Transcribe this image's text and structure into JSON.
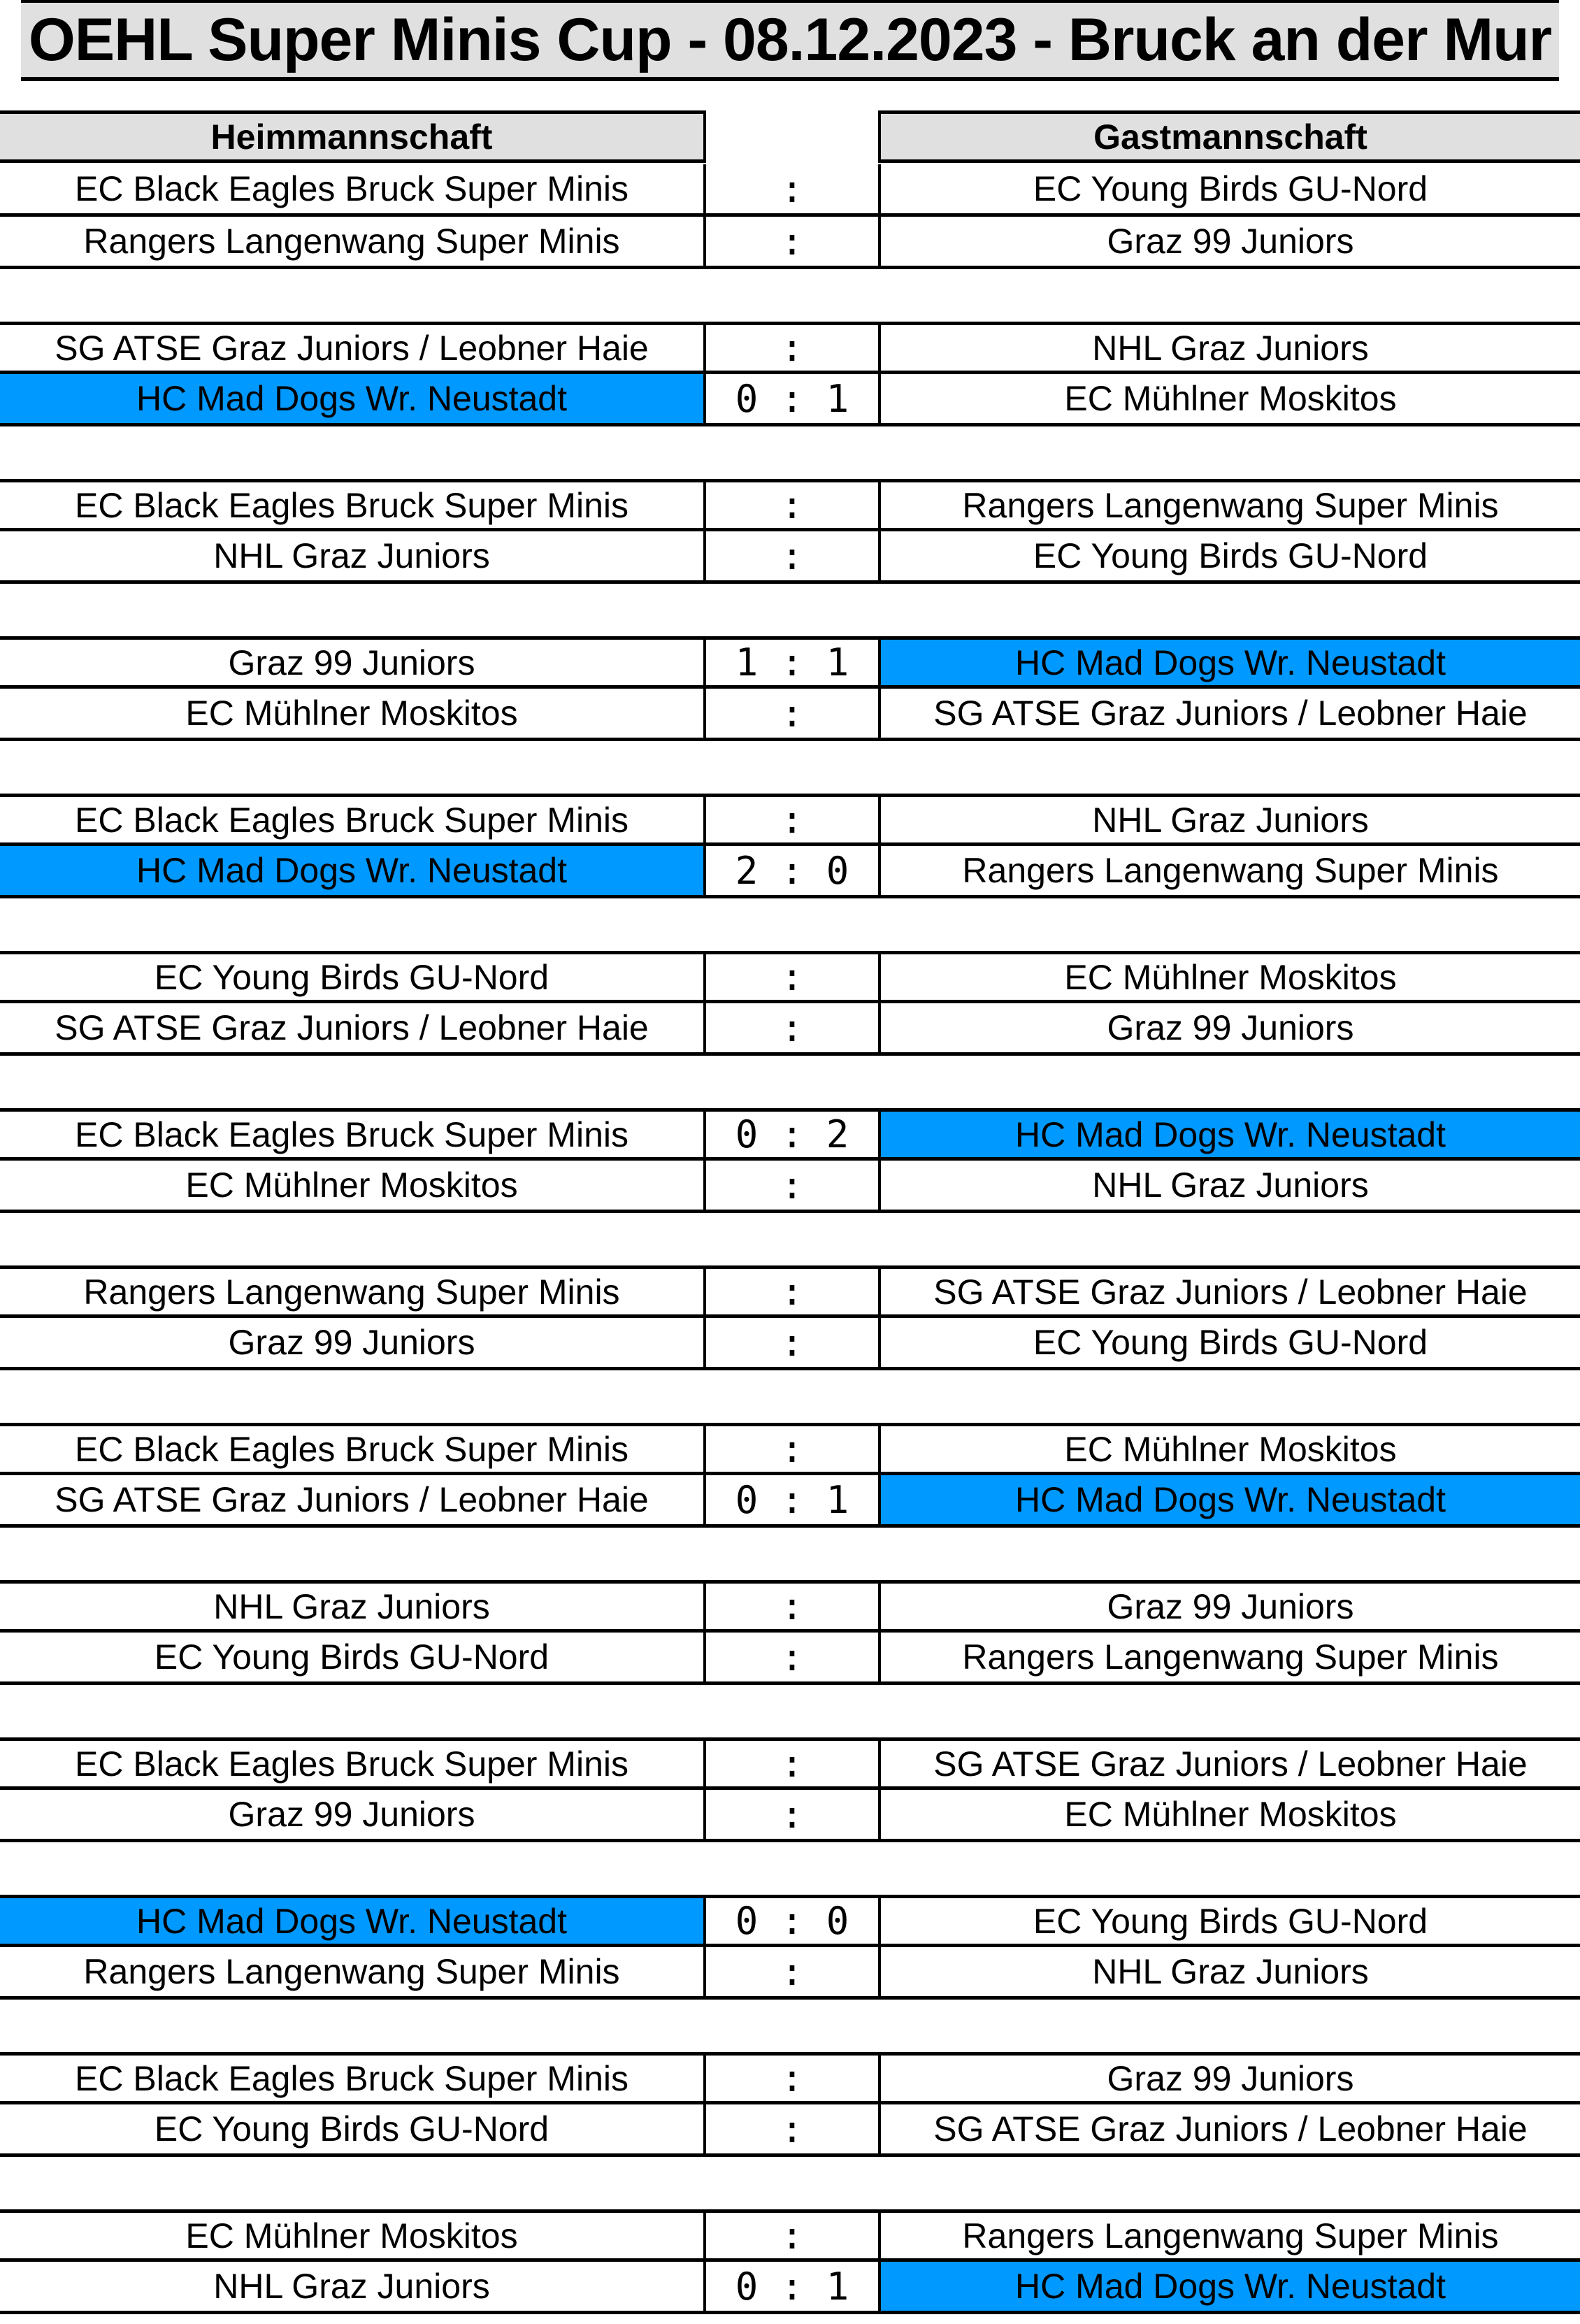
{
  "title": "OEHL Super Minis Cup - 08.12.2023 - Bruck an der Mur",
  "header": {
    "home": "Heimmannschaft",
    "score": "",
    "away": "Gastmannschaft"
  },
  "highlight_color": "#0099ff",
  "groups": [
    [
      {
        "home": "EC Black Eagles Bruck Super Minis",
        "score": ":",
        "away": "EC Young Birds GU-Nord",
        "highlight": null
      },
      {
        "home": "Rangers Langenwang Super Minis",
        "score": ":",
        "away": "Graz 99 Juniors",
        "highlight": null
      }
    ],
    [
      {
        "home": "SG ATSE Graz Juniors / Leobner Haie",
        "score": ":",
        "away": "NHL Graz Juniors",
        "highlight": null
      },
      {
        "home": "HC Mad Dogs Wr. Neustadt",
        "score": "0 : 1",
        "away": "EC Mühlner Moskitos",
        "highlight": "home"
      }
    ],
    [
      {
        "home": "EC Black Eagles Bruck Super Minis",
        "score": ":",
        "away": "Rangers Langenwang Super Minis",
        "highlight": null
      },
      {
        "home": "NHL Graz Juniors",
        "score": ":",
        "away": "EC Young Birds GU-Nord",
        "highlight": null
      }
    ],
    [
      {
        "home": "Graz 99 Juniors",
        "score": "1 : 1",
        "away": "HC Mad Dogs Wr. Neustadt",
        "highlight": "away"
      },
      {
        "home": "EC Mühlner Moskitos",
        "score": ":",
        "away": "SG ATSE Graz Juniors / Leobner Haie",
        "highlight": null
      }
    ],
    [
      {
        "home": "EC Black Eagles Bruck Super Minis",
        "score": ":",
        "away": "NHL Graz Juniors",
        "highlight": null
      },
      {
        "home": "HC Mad Dogs Wr. Neustadt",
        "score": "2 : 0",
        "away": "Rangers Langenwang Super Minis",
        "highlight": "home"
      }
    ],
    [
      {
        "home": "EC Young Birds GU-Nord",
        "score": ":",
        "away": "EC Mühlner Moskitos",
        "highlight": null
      },
      {
        "home": "SG ATSE Graz Juniors / Leobner Haie",
        "score": ":",
        "away": "Graz 99 Juniors",
        "highlight": null
      }
    ],
    [
      {
        "home": "EC Black Eagles Bruck Super Minis",
        "score": "0 : 2",
        "away": "HC Mad Dogs Wr. Neustadt",
        "highlight": "away"
      },
      {
        "home": "EC Mühlner Moskitos",
        "score": ":",
        "away": "NHL Graz Juniors",
        "highlight": null
      }
    ],
    [
      {
        "home": "Rangers Langenwang Super Minis",
        "score": ":",
        "away": "SG ATSE Graz Juniors / Leobner Haie",
        "highlight": null
      },
      {
        "home": "Graz 99 Juniors",
        "score": ":",
        "away": "EC Young Birds GU-Nord",
        "highlight": null
      }
    ],
    [
      {
        "home": "EC Black Eagles Bruck Super Minis",
        "score": ":",
        "away": "EC Mühlner Moskitos",
        "highlight": null
      },
      {
        "home": "SG ATSE Graz Juniors / Leobner Haie",
        "score": "0 : 1",
        "away": "HC Mad Dogs Wr. Neustadt",
        "highlight": "away"
      }
    ],
    [
      {
        "home": "NHL Graz Juniors",
        "score": ":",
        "away": "Graz 99 Juniors",
        "highlight": null
      },
      {
        "home": "EC Young Birds GU-Nord",
        "score": ":",
        "away": "Rangers Langenwang Super Minis",
        "highlight": null
      }
    ],
    [
      {
        "home": "EC Black Eagles Bruck Super Minis",
        "score": ":",
        "away": "SG ATSE Graz Juniors / Leobner Haie",
        "highlight": null
      },
      {
        "home": "Graz 99 Juniors",
        "score": ":",
        "away": "EC Mühlner Moskitos",
        "highlight": null
      }
    ],
    [
      {
        "home": "HC Mad Dogs Wr. Neustadt",
        "score": "0 : 0",
        "away": "EC Young Birds GU-Nord",
        "highlight": "home"
      },
      {
        "home": "Rangers Langenwang Super Minis",
        "score": ":",
        "away": "NHL Graz Juniors",
        "highlight": null
      }
    ],
    [
      {
        "home": "EC Black Eagles Bruck Super Minis",
        "score": ":",
        "away": "Graz 99 Juniors",
        "highlight": null
      },
      {
        "home": "EC Young Birds GU-Nord",
        "score": ":",
        "away": "SG ATSE Graz Juniors / Leobner Haie",
        "highlight": null
      }
    ],
    [
      {
        "home": "EC Mühlner Moskitos",
        "score": ":",
        "away": "Rangers Langenwang Super Minis",
        "highlight": null
      },
      {
        "home": "NHL Graz Juniors",
        "score": "0 : 1",
        "away": "HC Mad Dogs Wr. Neustadt",
        "highlight": "away"
      }
    ]
  ]
}
